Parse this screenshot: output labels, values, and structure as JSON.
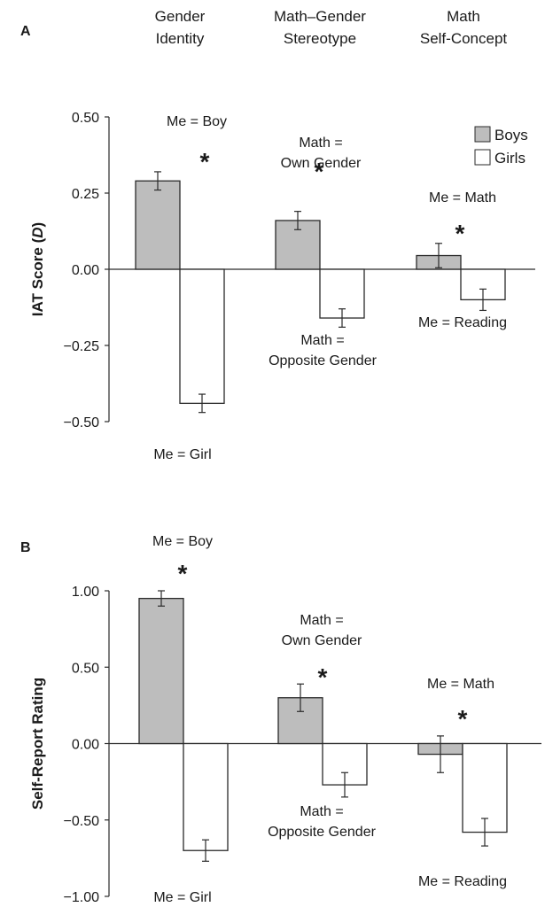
{
  "headers": [
    [
      "Gender",
      "Identity"
    ],
    [
      "Math–Gender",
      "Stereotype"
    ],
    [
      "Math",
      "Self-Concept"
    ]
  ],
  "legend": [
    "Boys",
    "Girls"
  ],
  "colors": {
    "boys": "#bdbdbd",
    "girls": "#ffffff",
    "stroke": "#2a2a2a"
  },
  "chart_data": [
    {
      "type": "bar",
      "panel": "A",
      "ylabel_main": "IAT Score (",
      "ylabel_italic": "D",
      "ylabel_tail": ")",
      "ylim": [
        -0.5,
        0.5
      ],
      "yticks": [
        0.5,
        0.25,
        0,
        -0.25,
        -0.5
      ],
      "ytick_labels": [
        "0.50",
        "0.25",
        "0.00",
        "−0.25",
        "−0.50"
      ],
      "categories": [
        "Gender Identity",
        "Math–Gender Stereotype",
        "Math Self-Concept"
      ],
      "series": [
        {
          "name": "Boys",
          "values": [
            0.29,
            0.16,
            0.045
          ],
          "errors": [
            0.03,
            0.03,
            0.04
          ]
        },
        {
          "name": "Girls",
          "values": [
            -0.44,
            -0.16,
            -0.1
          ],
          "errors": [
            0.03,
            0.03,
            0.035
          ]
        }
      ],
      "significant": [
        true,
        true,
        true
      ],
      "annotations_top": [
        [
          "Me = Boy"
        ],
        [
          "Math =",
          "Own Gender"
        ],
        [
          "Me = Math"
        ]
      ],
      "annotations_bottom": [
        [
          "Me = Girl"
        ],
        [
          "Math =",
          "Opposite Gender"
        ],
        [
          "Me = Reading"
        ]
      ],
      "grid": false
    },
    {
      "type": "bar",
      "panel": "B",
      "ylabel_main": "Self-Report Rating",
      "ylabel_italic": "",
      "ylabel_tail": "",
      "ylim": [
        -1.0,
        1.0
      ],
      "yticks": [
        1.0,
        0.5,
        0,
        -0.5,
        -1.0
      ],
      "ytick_labels": [
        "1.00",
        "0.50",
        "0.00",
        "−0.50",
        "−1.00"
      ],
      "categories": [
        "Gender Identity",
        "Math–Gender Stereotype",
        "Math Self-Concept"
      ],
      "series": [
        {
          "name": "Boys",
          "values": [
            0.95,
            0.3,
            -0.07
          ],
          "errors": [
            0.05,
            0.09,
            0.12
          ]
        },
        {
          "name": "Girls",
          "values": [
            -0.7,
            -0.27,
            -0.58
          ],
          "errors": [
            0.07,
            0.08,
            0.09
          ]
        }
      ],
      "significant": [
        true,
        true,
        true
      ],
      "annotations_top": [
        [
          "Me = Boy"
        ],
        [
          "Math =",
          "Own Gender"
        ],
        [
          "Me = Math"
        ]
      ],
      "annotations_bottom": [
        [
          "Me = Girl"
        ],
        [
          "Math =",
          "Opposite Gender"
        ],
        [
          "Me = Reading"
        ]
      ],
      "grid": false
    }
  ]
}
